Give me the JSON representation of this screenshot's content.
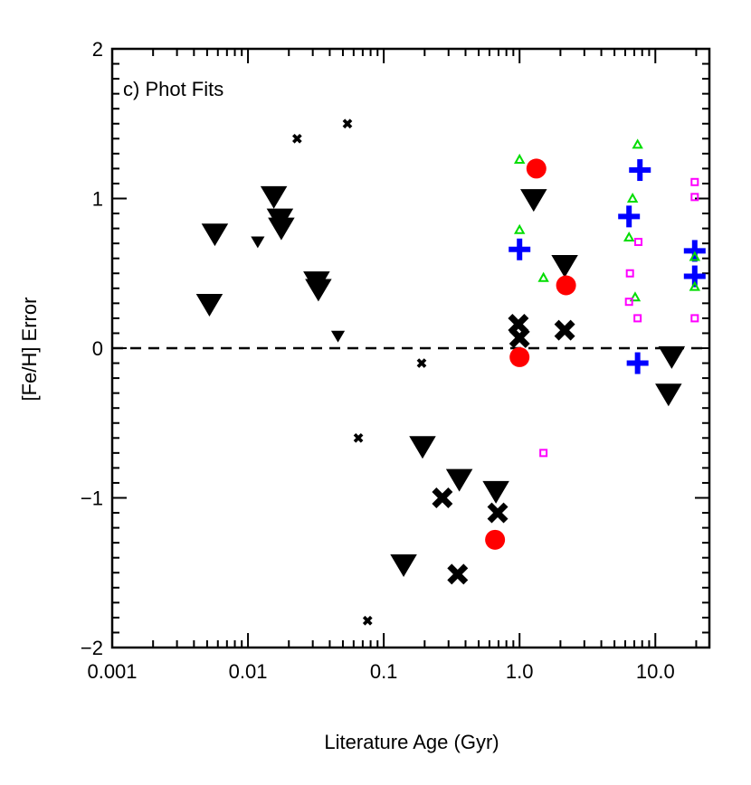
{
  "chart_data": {
    "type": "scatter",
    "panel_label": "c) Phot Fits",
    "xlabel": "Literature Age (Gyr)",
    "ylabel": "[Fe/H] Error",
    "xscale": "log",
    "xlim": [
      0.001,
      25
    ],
    "ylim": [
      -2,
      2
    ],
    "x_ticks": [
      {
        "value": 0.001,
        "label": "0.001"
      },
      {
        "value": 0.01,
        "label": "0.01"
      },
      {
        "value": 0.1,
        "label": "0.1"
      },
      {
        "value": 1.0,
        "label": "1.0"
      },
      {
        "value": 10.0,
        "label": "10.0"
      }
    ],
    "y_ticks": [
      {
        "value": -2,
        "label": "−2"
      },
      {
        "value": -1,
        "label": "−1"
      },
      {
        "value": 0,
        "label": "0"
      },
      {
        "value": 1,
        "label": "1"
      },
      {
        "value": 2,
        "label": "2"
      }
    ],
    "reference_line": {
      "y": 0,
      "style": "dashed"
    },
    "series": [
      {
        "name": "triangles-down",
        "marker": "triangle-down",
        "color": "#000000",
        "points": [
          {
            "x": 0.0052,
            "y": 0.29,
            "size": "L"
          },
          {
            "x": 0.0057,
            "y": 0.76,
            "size": "L"
          },
          {
            "x": 0.0118,
            "y": 0.71,
            "size": "S"
          },
          {
            "x": 0.0155,
            "y": 1.01,
            "size": "L"
          },
          {
            "x": 0.0172,
            "y": 0.86,
            "size": "L"
          },
          {
            "x": 0.0176,
            "y": 0.8,
            "size": "L"
          },
          {
            "x": 0.032,
            "y": 0.44,
            "size": "L"
          },
          {
            "x": 0.033,
            "y": 0.39,
            "size": "L"
          },
          {
            "x": 0.046,
            "y": 0.08,
            "size": "S"
          },
          {
            "x": 0.193,
            "y": -0.66,
            "size": "L"
          },
          {
            "x": 0.14,
            "y": -1.45,
            "size": "L"
          },
          {
            "x": 0.36,
            "y": -0.88,
            "size": "L"
          },
          {
            "x": 0.67,
            "y": -0.96,
            "size": "L"
          },
          {
            "x": 1.27,
            "y": 0.99,
            "size": "L"
          },
          {
            "x": 2.15,
            "y": 0.55,
            "size": "L"
          },
          {
            "x": 12.5,
            "y": -0.31,
            "size": "L"
          },
          {
            "x": 13.2,
            "y": -0.06,
            "size": "L"
          }
        ]
      },
      {
        "name": "crosses",
        "marker": "x",
        "color": "#000000",
        "points": [
          {
            "x": 0.023,
            "y": 1.4,
            "size": "S"
          },
          {
            "x": 0.054,
            "y": 1.5,
            "size": "S"
          },
          {
            "x": 0.065,
            "y": -0.6,
            "size": "S"
          },
          {
            "x": 0.076,
            "y": -1.82,
            "size": "S"
          },
          {
            "x": 0.19,
            "y": -0.1,
            "size": "S"
          },
          {
            "x": 0.27,
            "y": -1.0,
            "size": "L"
          },
          {
            "x": 0.35,
            "y": -1.51,
            "size": "L"
          },
          {
            "x": 0.69,
            "y": -1.1,
            "size": "L"
          },
          {
            "x": 0.98,
            "y": 0.16,
            "size": "L"
          },
          {
            "x": 1.0,
            "y": 0.07,
            "size": "L"
          },
          {
            "x": 2.15,
            "y": 0.12,
            "size": "L"
          }
        ]
      },
      {
        "name": "filled-circles",
        "marker": "circle",
        "color": "#ff0000",
        "points": [
          {
            "x": 0.66,
            "y": -1.28
          },
          {
            "x": 1.0,
            "y": -0.06
          },
          {
            "x": 1.33,
            "y": 1.2
          },
          {
            "x": 2.2,
            "y": 0.42
          }
        ]
      },
      {
        "name": "plus",
        "marker": "plus",
        "color": "#0000ff",
        "points": [
          {
            "x": 1.0,
            "y": 0.66
          },
          {
            "x": 6.4,
            "y": 0.88
          },
          {
            "x": 7.4,
            "y": -0.1
          },
          {
            "x": 7.7,
            "y": 1.19
          },
          {
            "x": 19.5,
            "y": 0.65
          },
          {
            "x": 19.5,
            "y": 0.48
          }
        ]
      },
      {
        "name": "open-triangles",
        "marker": "triangle-up-open",
        "color": "#00dd00",
        "points": [
          {
            "x": 1.0,
            "y": 1.26
          },
          {
            "x": 1.0,
            "y": 0.79
          },
          {
            "x": 1.5,
            "y": 0.47
          },
          {
            "x": 6.4,
            "y": 0.74
          },
          {
            "x": 6.8,
            "y": 1.0
          },
          {
            "x": 7.1,
            "y": 0.34
          },
          {
            "x": 7.4,
            "y": 1.36
          },
          {
            "x": 19.5,
            "y": 0.61
          },
          {
            "x": 19.5,
            "y": 0.41
          }
        ]
      },
      {
        "name": "open-squares",
        "marker": "square-open",
        "color": "#ff00ff",
        "points": [
          {
            "x": 1.5,
            "y": -0.7
          },
          {
            "x": 6.5,
            "y": 0.5
          },
          {
            "x": 6.4,
            "y": 0.31
          },
          {
            "x": 7.5,
            "y": 0.71
          },
          {
            "x": 7.4,
            "y": 0.2
          },
          {
            "x": 19.5,
            "y": 1.11
          },
          {
            "x": 19.5,
            "y": 1.01
          },
          {
            "x": 19.5,
            "y": 0.2
          }
        ]
      }
    ]
  }
}
